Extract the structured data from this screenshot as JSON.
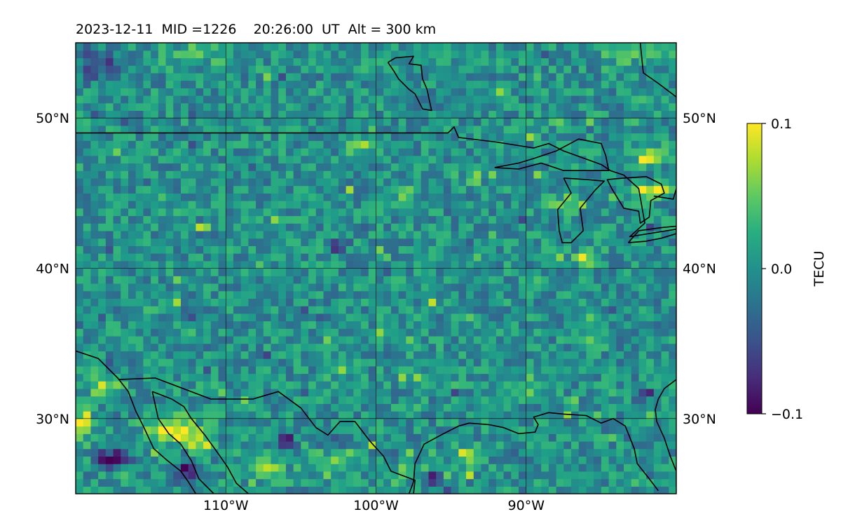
{
  "chart_data": {
    "type": "heatmap",
    "title": "2023-12-11  MID =1226    20:26:00  UT  Alt = 300 km",
    "date": "2023-12-11",
    "mid": 1226,
    "time_ut": "20:26:00",
    "altitude_km": 300,
    "projection": "plate-carree",
    "xlim": [
      -120,
      -80
    ],
    "ylim": [
      25,
      55
    ],
    "x_ticks": [
      -110,
      -100,
      -90
    ],
    "x_tick_labels": [
      "110°W",
      "100°W",
      "90°W"
    ],
    "y_ticks": [
      30,
      40,
      50
    ],
    "y_tick_labels_left": [
      "30°N",
      "40°N",
      "50°N"
    ],
    "y_tick_labels_right": [
      "30°N",
      "40°N",
      "50°N"
    ],
    "grid": true,
    "colormap": "viridis",
    "colorbar": {
      "label": "TECU",
      "vmin": -0.1,
      "vmax": 0.1,
      "ticks": [
        0.1,
        0.0,
        -0.1
      ],
      "tick_labels": [
        "0.1",
        "0.0",
        "−0.1"
      ]
    },
    "grid_resolution_deg": [
      0.5,
      0.5
    ],
    "background_level": 0.0,
    "hotspots": [
      {
        "lon": -113.5,
        "lat": 29.2,
        "value": 0.11,
        "rlon": 1.6,
        "rlat": 0.9
      },
      {
        "lon": -111.6,
        "lat": 28.2,
        "value": 0.07,
        "rlon": 0.8,
        "rlat": 0.6
      },
      {
        "lon": -119.5,
        "lat": 29.8,
        "value": 0.08,
        "rlon": 0.7,
        "rlat": 1.2
      },
      {
        "lon": -118.0,
        "lat": 32.2,
        "value": 0.06,
        "rlon": 1.0,
        "rlat": 0.8
      },
      {
        "lon": -107.5,
        "lat": 27.0,
        "value": 0.06,
        "rlon": 1.4,
        "rlat": 1.0
      },
      {
        "lon": -103.3,
        "lat": 27.0,
        "value": 0.05,
        "rlon": 1.2,
        "rlat": 0.9
      },
      {
        "lon": -94.0,
        "lat": 27.6,
        "value": 0.07,
        "rlon": 0.9,
        "rlat": 0.6
      },
      {
        "lon": -95.5,
        "lat": 26.2,
        "value": 0.06,
        "rlon": 0.4,
        "rlat": 0.4
      },
      {
        "lon": -98.7,
        "lat": 26.3,
        "value": 0.05,
        "rlon": 0.5,
        "rlat": 0.6
      },
      {
        "lon": -81.7,
        "lat": 45.2,
        "value": 0.1,
        "rlon": 1.3,
        "rlat": 0.5
      },
      {
        "lon": -81.6,
        "lat": 47.6,
        "value": 0.09,
        "rlon": 0.7,
        "rlat": 0.6
      },
      {
        "lon": -86.0,
        "lat": 40.7,
        "value": 0.07,
        "rlon": 1.0,
        "rlat": 0.5
      },
      {
        "lon": -87.5,
        "lat": 44.3,
        "value": 0.05,
        "rlon": 1.2,
        "rlat": 0.6
      },
      {
        "lon": -101.0,
        "lat": 48.2,
        "value": 0.06,
        "rlon": 0.9,
        "rlat": 0.6
      },
      {
        "lon": -97.8,
        "lat": 44.8,
        "value": 0.05,
        "rlon": 0.6,
        "rlat": 0.5
      },
      {
        "lon": -93.5,
        "lat": 46.0,
        "value": 0.05,
        "rlon": 0.6,
        "rlat": 0.5
      },
      {
        "lon": -112.0,
        "lat": 54.3,
        "value": 0.03,
        "rlon": 2.5,
        "rlat": 0.8
      },
      {
        "lon": -83.0,
        "lat": 54.5,
        "value": 0.04,
        "rlon": 2.0,
        "rlat": 0.8
      },
      {
        "lon": -117.5,
        "lat": 27.4,
        "value": -0.09,
        "rlon": 1.3,
        "rlat": 0.6
      },
      {
        "lon": -112.6,
        "lat": 26.6,
        "value": -0.08,
        "rlon": 0.6,
        "rlat": 0.8
      },
      {
        "lon": -96.0,
        "lat": 26.2,
        "value": -0.1,
        "rlon": 0.6,
        "rlat": 0.5
      },
      {
        "lon": -106.0,
        "lat": 28.6,
        "value": -0.07,
        "rlon": 0.6,
        "rlat": 0.5
      },
      {
        "lon": -103.0,
        "lat": 28.5,
        "value": -0.06,
        "rlon": 0.6,
        "rlat": 0.5
      },
      {
        "lon": -102.5,
        "lat": 41.4,
        "value": -0.08,
        "rlon": 0.5,
        "rlat": 0.4
      },
      {
        "lon": -82.0,
        "lat": 31.6,
        "value": -0.07,
        "rlon": 0.5,
        "rlat": 0.4
      },
      {
        "lon": -118.5,
        "lat": 53.5,
        "value": -0.05,
        "rlon": 1.5,
        "rlat": 1.2
      },
      {
        "lon": -95.0,
        "lat": 44.0,
        "value": -0.06,
        "rlon": 0.5,
        "rlat": 0.3
      }
    ],
    "noise_amplitude": 0.035,
    "coastlines": [
      {
        "name": "canada-usa-border",
        "points": [
          [
            -120,
            49.0
          ],
          [
            -95.2,
            49.0
          ],
          [
            -94.8,
            49.4
          ],
          [
            -94.5,
            48.7
          ],
          [
            -92,
            48.4
          ],
          [
            -89.5,
            48.0
          ],
          [
            -88.5,
            48.3
          ],
          [
            -87.5,
            47.8
          ],
          [
            -85,
            46.9
          ],
          [
            -84.4,
            46.5
          ],
          [
            -83.5,
            46.2
          ],
          [
            -82.5,
            45.3
          ],
          [
            -82.1,
            43.0
          ],
          [
            -83.1,
            42.1
          ],
          [
            -80,
            42.6
          ]
        ]
      },
      {
        "name": "lake-winnipeg",
        "points": [
          [
            -99.2,
            53.7
          ],
          [
            -98.7,
            54.0
          ],
          [
            -97.5,
            54.1
          ],
          [
            -97.8,
            53.6
          ],
          [
            -97.0,
            53.5
          ],
          [
            -96.9,
            52.6
          ],
          [
            -96.6,
            51.9
          ],
          [
            -96.3,
            50.5
          ],
          [
            -96.9,
            50.6
          ],
          [
            -97.4,
            51.6
          ],
          [
            -97.8,
            51.9
          ],
          [
            -98.5,
            52.6
          ],
          [
            -98.8,
            53.1
          ],
          [
            -99.2,
            53.7
          ]
        ]
      },
      {
        "name": "lake-superior",
        "points": [
          [
            -92.1,
            46.7
          ],
          [
            -90.5,
            47.0
          ],
          [
            -89.5,
            47.3
          ],
          [
            -88.0,
            47.8
          ],
          [
            -86.5,
            48.6
          ],
          [
            -85.0,
            48.3
          ],
          [
            -84.7,
            47.5
          ],
          [
            -84.5,
            46.5
          ],
          [
            -86.0,
            46.5
          ],
          [
            -87.5,
            46.5
          ],
          [
            -89.0,
            47.0
          ],
          [
            -90.5,
            46.6
          ],
          [
            -92.1,
            46.7
          ]
        ]
      },
      {
        "name": "lake-michigan",
        "points": [
          [
            -87.5,
            46.0
          ],
          [
            -87.0,
            45.0
          ],
          [
            -87.9,
            43.9
          ],
          [
            -87.8,
            42.5
          ],
          [
            -87.6,
            41.7
          ],
          [
            -87.0,
            41.7
          ],
          [
            -86.2,
            42.5
          ],
          [
            -86.4,
            44.0
          ],
          [
            -85.4,
            45.2
          ],
          [
            -84.8,
            45.8
          ],
          [
            -86.0,
            45.9
          ],
          [
            -87.5,
            46.0
          ]
        ]
      },
      {
        "name": "lake-huron",
        "points": [
          [
            -84.6,
            45.9
          ],
          [
            -83.5,
            46.0
          ],
          [
            -82.0,
            46.1
          ],
          [
            -81.0,
            45.6
          ],
          [
            -80.8,
            45.0
          ],
          [
            -81.7,
            44.5
          ],
          [
            -81.8,
            43.4
          ],
          [
            -82.4,
            43.0
          ],
          [
            -82.5,
            43.8
          ],
          [
            -83.5,
            44.0
          ],
          [
            -84.3,
            45.3
          ],
          [
            -84.6,
            45.9
          ]
        ]
      },
      {
        "name": "lake-erie",
        "points": [
          [
            -83.2,
            41.7
          ],
          [
            -82.0,
            41.8
          ],
          [
            -81.0,
            42.0
          ],
          [
            -80.0,
            42.3
          ],
          [
            -80.0,
            42.8
          ],
          [
            -81.0,
            42.7
          ],
          [
            -82.5,
            42.5
          ],
          [
            -83.2,
            41.7
          ]
        ]
      },
      {
        "name": "pacific-coast-baja",
        "points": [
          [
            -120,
            34.5
          ],
          [
            -118.5,
            34.0
          ],
          [
            -117.2,
            32.7
          ],
          [
            -116.5,
            31.8
          ],
          [
            -116.0,
            30.5
          ],
          [
            -115.5,
            29.5
          ],
          [
            -114.8,
            28.0
          ],
          [
            -114.0,
            27.3
          ],
          [
            -113.0,
            26.5
          ],
          [
            -112.5,
            25.8
          ],
          [
            -112.0,
            25.0
          ]
        ]
      },
      {
        "name": "gulf-of-california",
        "points": [
          [
            -114.9,
            31.8
          ],
          [
            -114.7,
            30.9
          ],
          [
            -114.5,
            30.0
          ],
          [
            -113.8,
            29.0
          ],
          [
            -113.0,
            28.3
          ],
          [
            -112.3,
            27.2
          ],
          [
            -111.8,
            26.0
          ],
          [
            -110.8,
            25.0
          ]
        ]
      },
      {
        "name": "sonora-coast",
        "points": [
          [
            -114.9,
            31.8
          ],
          [
            -113.6,
            31.3
          ],
          [
            -112.8,
            30.8
          ],
          [
            -112.3,
            30.0
          ],
          [
            -111.4,
            28.9
          ],
          [
            -110.6,
            27.8
          ],
          [
            -109.9,
            26.8
          ],
          [
            -109.3,
            25.7
          ],
          [
            -108.5,
            25.0
          ]
        ]
      },
      {
        "name": "us-mexico-border",
        "points": [
          [
            -117.1,
            32.6
          ],
          [
            -114.7,
            32.7
          ],
          [
            -111.0,
            31.3
          ],
          [
            -108.2,
            31.3
          ],
          [
            -106.5,
            31.8
          ],
          [
            -105.0,
            30.7
          ],
          [
            -104.0,
            29.4
          ],
          [
            -103.2,
            28.9
          ],
          [
            -102.4,
            29.8
          ],
          [
            -101.4,
            29.8
          ],
          [
            -100.4,
            28.5
          ],
          [
            -99.5,
            27.5
          ],
          [
            -99.0,
            26.5
          ],
          [
            -97.4,
            25.9
          ],
          [
            -97.5,
            25.0
          ]
        ]
      },
      {
        "name": "gulf-coast",
        "points": [
          [
            -97.8,
            25.0
          ],
          [
            -97.5,
            25.8
          ],
          [
            -97.4,
            27.0
          ],
          [
            -96.8,
            28.3
          ],
          [
            -95.5,
            29.0
          ],
          [
            -94.5,
            29.5
          ],
          [
            -93.8,
            29.7
          ],
          [
            -92.5,
            29.6
          ],
          [
            -91.5,
            29.4
          ],
          [
            -90.5,
            29.0
          ],
          [
            -89.4,
            29.1
          ],
          [
            -89.2,
            29.6
          ],
          [
            -89.5,
            30.1
          ],
          [
            -88.5,
            30.4
          ],
          [
            -87.5,
            30.3
          ],
          [
            -86.0,
            30.2
          ],
          [
            -85.0,
            29.7
          ],
          [
            -84.2,
            30.0
          ],
          [
            -83.4,
            29.5
          ],
          [
            -82.8,
            28.0
          ],
          [
            -82.6,
            27.0
          ],
          [
            -81.8,
            26.0
          ],
          [
            -81.2,
            25.2
          ]
        ]
      },
      {
        "name": "atlantic-coast",
        "points": [
          [
            -80.0,
            32.6
          ],
          [
            -80.8,
            32.0
          ],
          [
            -81.2,
            31.3
          ],
          [
            -81.4,
            30.6
          ],
          [
            -81.3,
            29.8
          ],
          [
            -80.8,
            28.7
          ],
          [
            -80.4,
            27.5
          ],
          [
            -80.0,
            26.5
          ],
          [
            -80.0,
            25.5
          ]
        ]
      },
      {
        "name": "hudson-bay",
        "points": [
          [
            -82.4,
            55.0
          ],
          [
            -82.2,
            53.0
          ],
          [
            -81.2,
            52.3
          ],
          [
            -80.0,
            51.4
          ]
        ]
      },
      {
        "name": "georgian-bay",
        "points": [
          [
            -81.5,
            44.8
          ],
          [
            -80.2,
            44.6
          ],
          [
            -80.0,
            45.3
          ]
        ]
      }
    ]
  }
}
